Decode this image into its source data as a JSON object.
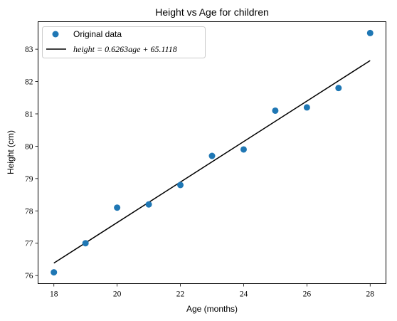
{
  "chart_data": {
    "type": "scatter",
    "title": "Height vs Age for children",
    "xlabel": "Age (months)",
    "ylabel": "Height (cm)",
    "xlim": [
      17.5,
      28.5
    ],
    "ylim": [
      75.75,
      83.85
    ],
    "xticks": [
      18,
      20,
      22,
      24,
      26,
      28
    ],
    "yticks": [
      76,
      77,
      78,
      79,
      80,
      81,
      82,
      83
    ],
    "grid": false,
    "legend_position": "top-left",
    "series": [
      {
        "name": "Original data",
        "kind": "scatter",
        "color": "#1f77b4",
        "x": [
          18,
          19,
          20,
          21,
          22,
          23,
          24,
          25,
          26,
          27,
          28
        ],
        "y": [
          76.1,
          77.0,
          78.1,
          78.2,
          78.8,
          79.7,
          79.9,
          81.1,
          81.2,
          81.8,
          83.5
        ]
      },
      {
        "name": "height = 0.6263age + 65.1118",
        "kind": "line",
        "color": "#000000",
        "x": [
          18,
          28
        ],
        "y": [
          76.3852,
          82.6482
        ]
      }
    ]
  }
}
